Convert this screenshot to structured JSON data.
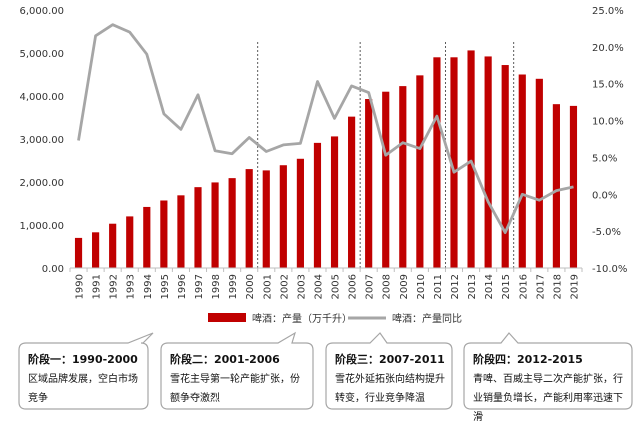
{
  "chart_data": {
    "type": "bar+line",
    "categories": [
      "1990",
      "1991",
      "1992",
      "1993",
      "1994",
      "1995",
      "1996",
      "1997",
      "1998",
      "1999",
      "2000",
      "2001",
      "2002",
      "2003",
      "2004",
      "2005",
      "2006",
      "2007",
      "2008",
      "2009",
      "2010",
      "2011",
      "2012",
      "2013",
      "2014",
      "2015",
      "2016",
      "2017",
      "2018",
      "2019"
    ],
    "series": [
      {
        "name": "啤酒：产量（万千升）",
        "type": "bar",
        "axis": "left",
        "color": "#c00000",
        "values": [
          700,
          830,
          1030,
          1200,
          1420,
          1570,
          1690,
          1880,
          1990,
          2090,
          2300,
          2270,
          2390,
          2540,
          2910,
          3060,
          3520,
          3930,
          4100,
          4230,
          4480,
          4900,
          4900,
          5060,
          4920,
          4720,
          4500,
          4400,
          3810,
          3770
        ]
      },
      {
        "name": "啤酒：产量同比",
        "type": "line",
        "axis": "right",
        "color": "#a6a6a6",
        "values": [
          7.3,
          21.5,
          23.0,
          22.0,
          19.0,
          10.9,
          8.8,
          13.5,
          5.9,
          5.5,
          7.7,
          5.8,
          6.7,
          6.9,
          15.3,
          10.3,
          14.7,
          13.8,
          5.3,
          7.0,
          6.2,
          10.6,
          3.0,
          4.5,
          -1.0,
          -5.2,
          0.0,
          -0.8,
          0.5,
          1.0
        ]
      }
    ],
    "y_left": {
      "min": 0,
      "max": 6000,
      "step": 1000,
      "tick_labels": [
        "0.00",
        "1,000.00",
        "2,000.00",
        "3,000.00",
        "4,000.00",
        "5,000.00",
        "6,000.00"
      ]
    },
    "y_right": {
      "min": -10,
      "max": 25,
      "step": 5,
      "tick_labels": [
        "-10.0%",
        "-5.0%",
        "0.0%",
        "5.0%",
        "10.0%",
        "15.0%",
        "20.0%",
        "25.0%"
      ]
    },
    "dividers_after": [
      "2000",
      "2006",
      "2011",
      "2015"
    ],
    "legend": {
      "position": "bottom",
      "entries": [
        "啤酒：产量（万千升）",
        "啤酒：产量同比"
      ]
    },
    "grid": false
  },
  "stages": [
    {
      "title": "阶段一：1990-2000",
      "desc": "区域品牌发展，空白市场竞争"
    },
    {
      "title": "阶段二：2001-2006",
      "desc": "雪花主导第一轮产能扩张，份额争夺激烈"
    },
    {
      "title": "阶段三：2007-2011",
      "desc": "雪花外延拓张向结构提升转变，行业竞争降温"
    },
    {
      "title": "阶段四：2012-2015",
      "desc": "青啤、百威主导二次产能扩张，行业销量负增长，产能利用率迅速下滑"
    }
  ]
}
